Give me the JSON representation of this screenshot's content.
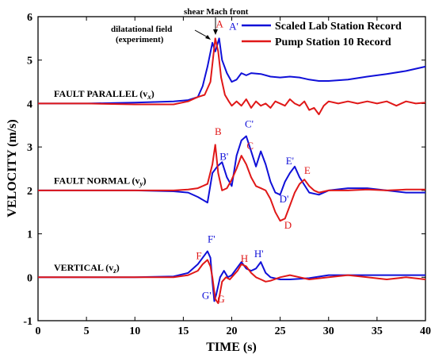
{
  "chart_data": {
    "type": "line",
    "title": "",
    "xlabel": "TIME (s)",
    "ylabel": "VELOCITY (m/s)",
    "xlim": [
      0,
      40
    ],
    "ylim": [
      -1,
      6
    ],
    "xticks": [
      0,
      5,
      10,
      15,
      20,
      25,
      30,
      35,
      40
    ],
    "yticks": [
      -1,
      0,
      1,
      2,
      3,
      4,
      5,
      6
    ],
    "grid": false,
    "legend_position": "top-right",
    "colors": {
      "blue": "#1010d8",
      "red": "#e01818"
    },
    "series": [
      {
        "name": "Scaled Lab Station Record",
        "color": "#1010d8",
        "segments": [
          {
            "label": "FAULT PARALLEL (v",
            "sub": "x",
            "x": [
              0,
              5,
              10,
              14,
              15.5,
              16.5,
              17.0,
              17.5,
              18.0,
              18.3,
              18.7,
              19.0,
              19.5,
              20.0,
              20.5,
              21.0,
              21.5,
              22.0,
              23.0,
              24.0,
              25.0,
              26.0,
              27.0,
              28.0,
              29.0,
              30.0,
              32.0,
              34.0,
              36.0,
              38.0,
              40.0
            ],
            "y": [
              4.0,
              4.0,
              4.02,
              4.05,
              4.08,
              4.15,
              4.4,
              4.85,
              5.4,
              5.2,
              5.5,
              5.0,
              4.7,
              4.5,
              4.55,
              4.7,
              4.65,
              4.7,
              4.68,
              4.62,
              4.6,
              4.62,
              4.6,
              4.55,
              4.52,
              4.52,
              4.55,
              4.62,
              4.68,
              4.75,
              4.85
            ]
          },
          {
            "label": "FAULT NORMAL (v",
            "sub": "y",
            "x": [
              0,
              5,
              10,
              14,
              15.5,
              16.5,
              17.5,
              18.0,
              18.5,
              19.0,
              19.5,
              20.0,
              20.5,
              21.0,
              21.5,
              22.0,
              22.5,
              23.0,
              23.5,
              24.0,
              24.5,
              25.0,
              25.5,
              26.0,
              26.5,
              27.0,
              28.0,
              29.0,
              30.0,
              32.0,
              34.0,
              36.0,
              38.0,
              40.0
            ],
            "y": [
              2.0,
              2.0,
              2.0,
              1.98,
              1.95,
              1.85,
              1.72,
              2.4,
              2.55,
              2.65,
              2.3,
              2.1,
              2.8,
              3.15,
              3.25,
              2.9,
              2.55,
              2.9,
              2.6,
              2.2,
              1.95,
              1.9,
              2.2,
              2.4,
              2.55,
              2.3,
              1.95,
              1.9,
              2.0,
              2.05,
              2.05,
              2.0,
              1.95,
              1.95
            ]
          },
          {
            "label": "VERTICAL (v",
            "sub": "z",
            "x": [
              0,
              5,
              10,
              14,
              15.5,
              16.5,
              17.0,
              17.5,
              17.8,
              18.0,
              18.2,
              18.4,
              18.8,
              19.2,
              19.6,
              20.0,
              20.5,
              21.0,
              21.5,
              22.0,
              22.5,
              23.0,
              23.5,
              24.0,
              25.0,
              26.0,
              28.0,
              30.0,
              32.0,
              34.0,
              36.0,
              38.0,
              40.0
            ],
            "y": [
              0.0,
              0.0,
              0.0,
              0.02,
              0.1,
              0.3,
              0.45,
              0.6,
              0.45,
              -0.1,
              -0.55,
              -0.4,
              0.0,
              0.15,
              0.0,
              0.05,
              0.2,
              0.35,
              0.2,
              0.15,
              0.2,
              0.35,
              0.1,
              0.0,
              -0.05,
              -0.05,
              -0.02,
              0.05,
              0.05,
              0.05,
              0.05,
              0.05,
              0.05
            ]
          }
        ]
      },
      {
        "name": "Pump Station 10 Record",
        "color": "#e01818",
        "segments": [
          {
            "x": [
              0,
              5,
              10,
              14,
              15.5,
              16.5,
              17.2,
              17.8,
              18.3,
              18.6,
              18.9,
              19.3,
              19.7,
              20.0,
              20.5,
              21.0,
              21.5,
              22.0,
              22.5,
              23.0,
              23.5,
              24.0,
              24.5,
              25.0,
              25.5,
              26.0,
              26.5,
              27.0,
              27.5,
              28.0,
              28.5,
              29.0,
              29.5,
              30.0,
              31.0,
              32.0,
              33.0,
              34.0,
              35.0,
              36.0,
              37.0,
              38.0,
              39.0,
              40.0
            ],
            "y": [
              4.0,
              4.0,
              3.98,
              3.98,
              4.05,
              4.15,
              4.2,
              4.5,
              5.5,
              5.2,
              4.6,
              4.2,
              4.05,
              3.95,
              4.05,
              3.95,
              4.1,
              3.9,
              4.05,
              3.95,
              4.0,
              3.9,
              4.05,
              4.0,
              3.95,
              4.1,
              4.0,
              3.95,
              4.05,
              3.85,
              3.9,
              3.75,
              3.95,
              4.05,
              4.0,
              4.05,
              4.0,
              4.05,
              4.0,
              4.05,
              3.95,
              4.05,
              4.0,
              4.02
            ]
          },
          {
            "x": [
              0,
              5,
              10,
              14,
              15.5,
              16.5,
              17.5,
              18.0,
              18.3,
              18.6,
              19.0,
              19.5,
              20.0,
              20.5,
              21.0,
              21.5,
              22.0,
              22.5,
              23.0,
              23.5,
              24.0,
              24.5,
              25.0,
              25.5,
              26.0,
              26.5,
              27.0,
              27.5,
              28.0,
              28.5,
              29.0,
              30.0,
              32.0,
              34.0,
              36.0,
              38.0,
              40.0
            ],
            "y": [
              2.0,
              2.0,
              2.0,
              2.0,
              2.02,
              2.05,
              2.15,
              2.6,
              3.05,
              2.4,
              2.0,
              2.05,
              2.25,
              2.5,
              2.8,
              2.6,
              2.3,
              2.1,
              2.05,
              2.0,
              1.8,
              1.5,
              1.3,
              1.35,
              1.65,
              1.95,
              2.15,
              2.25,
              2.1,
              2.0,
              1.95,
              2.0,
              2.0,
              2.02,
              2.0,
              2.02,
              2.02
            ]
          },
          {
            "x": [
              0,
              5,
              10,
              14,
              15.5,
              16.5,
              17.0,
              17.5,
              17.8,
              18.0,
              18.3,
              18.6,
              19.0,
              19.4,
              19.8,
              20.2,
              20.6,
              21.0,
              21.5,
              22.0,
              22.5,
              23.0,
              23.5,
              24.0,
              25.0,
              26.0,
              28.0,
              30.0,
              32.0,
              34.0,
              36.0,
              38.0,
              40.0
            ],
            "y": [
              0.0,
              0.0,
              0.0,
              0.0,
              0.05,
              0.15,
              0.3,
              0.4,
              0.25,
              0.0,
              -0.5,
              -0.6,
              -0.1,
              0.0,
              -0.05,
              0.05,
              0.15,
              0.3,
              0.25,
              0.1,
              0.0,
              -0.05,
              -0.1,
              -0.08,
              0.0,
              0.05,
              -0.05,
              0.0,
              0.05,
              0.0,
              -0.05,
              0.0,
              -0.05
            ]
          }
        ]
      }
    ],
    "annotations": {
      "dilatational": [
        "dilatational field",
        "(experiment)"
      ],
      "shear": "shear Mach front"
    },
    "point_labels": [
      {
        "text": "A",
        "x": 18.75,
        "y": 5.75,
        "color": "#e01818"
      },
      {
        "text": "A'",
        "x": 20.2,
        "y": 5.7,
        "color": "#1010d8"
      },
      {
        "text": "B",
        "x": 18.6,
        "y": 3.28,
        "color": "#e01818"
      },
      {
        "text": "B'",
        "x": 19.2,
        "y": 2.7,
        "color": "#1010d8"
      },
      {
        "text": "C'",
        "x": 21.8,
        "y": 3.45,
        "color": "#1010d8"
      },
      {
        "text": "C",
        "x": 21.9,
        "y": 2.95,
        "color": "#e01818"
      },
      {
        "text": "E'",
        "x": 26.0,
        "y": 2.6,
        "color": "#1010d8"
      },
      {
        "text": "E",
        "x": 27.8,
        "y": 2.38,
        "color": "#e01818"
      },
      {
        "text": "D'",
        "x": 25.4,
        "y": 1.72,
        "color": "#1010d8"
      },
      {
        "text": "D",
        "x": 25.8,
        "y": 1.12,
        "color": "#e01818"
      },
      {
        "text": "F'",
        "x": 17.9,
        "y": 0.8,
        "color": "#1010d8"
      },
      {
        "text": "F",
        "x": 16.6,
        "y": 0.42,
        "color": "#e01818"
      },
      {
        "text": "H",
        "x": 21.3,
        "y": 0.35,
        "color": "#e01818"
      },
      {
        "text": "H'",
        "x": 22.8,
        "y": 0.46,
        "color": "#1010d8"
      },
      {
        "text": "G'",
        "x": 17.4,
        "y": -0.5,
        "color": "#1010d8"
      },
      {
        "text": "G",
        "x": 18.9,
        "y": -0.58,
        "color": "#e01818"
      }
    ]
  }
}
